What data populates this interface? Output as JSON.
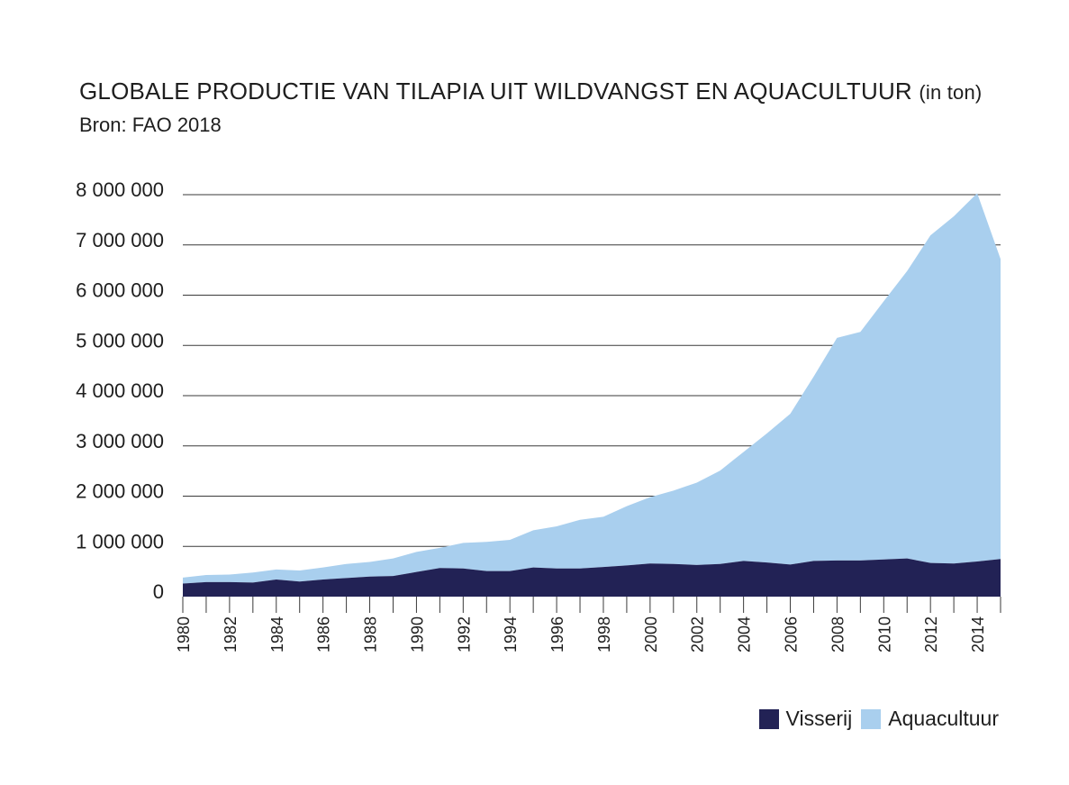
{
  "header": {
    "title": "GLOBALE PRODUCTIE VAN TILAPIA UIT WILDVANGST EN AQUACULTUUR",
    "title_unit": "(in ton)",
    "source": "Bron: FAO 2018"
  },
  "legend": {
    "items": [
      {
        "label": "Visserij",
        "color": "#222255"
      },
      {
        "label": "Aquacultuur",
        "color": "#a9cfee"
      }
    ]
  },
  "chart_data": {
    "type": "area",
    "stacked": true,
    "title": "GLOBALE PRODUCTIE VAN TILAPIA UIT WILDVANGST EN AQUACULTUUR",
    "ylabel": "(in ton)",
    "xlabel": "",
    "x": [
      1980,
      1981,
      1982,
      1983,
      1984,
      1985,
      1986,
      1987,
      1988,
      1989,
      1990,
      1991,
      1992,
      1993,
      1994,
      1995,
      1996,
      1997,
      1998,
      1999,
      2000,
      2001,
      2002,
      2003,
      2004,
      2005,
      2006,
      2007,
      2008,
      2009,
      2010,
      2011,
      2012,
      2013,
      2014,
      2015
    ],
    "x_tick_labels": [
      "1980",
      "1982",
      "1984",
      "1986",
      "1988",
      "1990",
      "1992",
      "1994",
      "1996",
      "1998",
      "2000",
      "2002",
      "2004",
      "2006",
      "2008",
      "2010",
      "2012",
      "2014"
    ],
    "y_tick_labels": [
      "0",
      "1 000 000",
      "2 000 000",
      "3 000 000",
      "4 000 000",
      "5 000 000",
      "6 000 000",
      "7 000 000",
      "8 000 000"
    ],
    "ylim": [
      0,
      8000000
    ],
    "grid": true,
    "legend_position": "bottom-right",
    "series": [
      {
        "name": "Visserij",
        "color": "#222255",
        "values": [
          260000,
          290000,
          290000,
          280000,
          340000,
          300000,
          340000,
          370000,
          400000,
          410000,
          490000,
          570000,
          560000,
          510000,
          510000,
          580000,
          560000,
          560000,
          590000,
          620000,
          660000,
          650000,
          630000,
          650000,
          710000,
          680000,
          640000,
          710000,
          720000,
          720000,
          740000,
          760000,
          670000,
          660000,
          700000,
          750000
        ]
      },
      {
        "name": "Aquacultuur",
        "color": "#a9cfee",
        "values": [
          120000,
          140000,
          150000,
          200000,
          200000,
          220000,
          240000,
          280000,
          290000,
          350000,
          400000,
          400000,
          510000,
          580000,
          620000,
          740000,
          840000,
          970000,
          1000000,
          1180000,
          1320000,
          1460000,
          1640000,
          1860000,
          2170000,
          2570000,
          3000000,
          3670000,
          4430000,
          4550000,
          5140000,
          5720000,
          6520000,
          6910000,
          7330000,
          5970000
        ]
      }
    ]
  }
}
